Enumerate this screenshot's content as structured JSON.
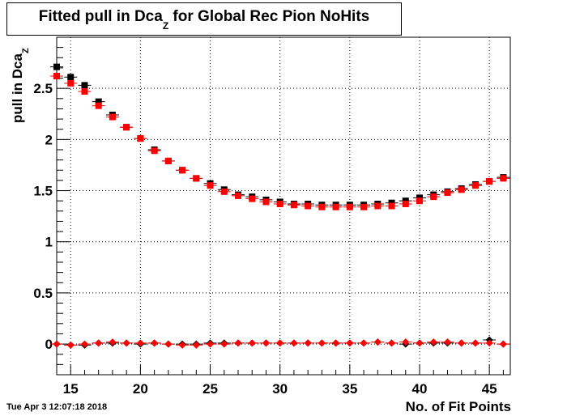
{
  "chart_data": {
    "type": "scatter",
    "title": "Fitted pull in Dca",
    "title_sub": "Z",
    "title_rest": " for Global Rec Pion NoHits",
    "xlabel": "No. of Fit Points",
    "ylabel": "pull in Dca",
    "ylabel_sub": "Z",
    "xlim": [
      14,
      46.5
    ],
    "ylim": [
      -0.3,
      3.0
    ],
    "xticks": [
      15,
      20,
      25,
      30,
      35,
      40,
      45
    ],
    "yticks": [
      0,
      0.5,
      1,
      1.5,
      2,
      2.5
    ],
    "ytick_labels": [
      "0",
      "0.5",
      "1",
      "1.5",
      "2",
      "2.5"
    ],
    "grid": true,
    "x": [
      14,
      15,
      16,
      17,
      18,
      19,
      20,
      21,
      22,
      23,
      24,
      25,
      26,
      27,
      28,
      29,
      30,
      31,
      32,
      33,
      34,
      35,
      36,
      37,
      38,
      39,
      40,
      41,
      42,
      43,
      44,
      45,
      46
    ],
    "series": [
      {
        "color": "#000000",
        "marker": "square",
        "values": [
          2.71,
          2.61,
          2.53,
          2.37,
          2.24,
          2.12,
          2.01,
          1.9,
          1.79,
          1.7,
          1.62,
          1.57,
          1.51,
          1.46,
          1.44,
          1.41,
          1.39,
          1.37,
          1.37,
          1.36,
          1.36,
          1.36,
          1.36,
          1.37,
          1.38,
          1.4,
          1.43,
          1.46,
          1.49,
          1.52,
          1.56,
          1.59,
          1.63
        ]
      },
      {
        "color": "#ff0000",
        "marker": "square",
        "values": [
          2.62,
          2.55,
          2.47,
          2.33,
          2.22,
          2.12,
          2.01,
          1.89,
          1.79,
          1.7,
          1.62,
          1.55,
          1.49,
          1.45,
          1.42,
          1.39,
          1.37,
          1.36,
          1.35,
          1.34,
          1.34,
          1.34,
          1.34,
          1.35,
          1.35,
          1.37,
          1.4,
          1.44,
          1.48,
          1.51,
          1.55,
          1.59,
          1.62
        ]
      },
      {
        "color": "#000000",
        "marker": "diamond",
        "values": [
          0.0,
          -0.01,
          -0.01,
          0.01,
          0.01,
          0.01,
          0.0,
          0.01,
          0.0,
          0.0,
          0.0,
          0.01,
          0.01,
          0.01,
          0.01,
          0.01,
          0.01,
          0.01,
          0.01,
          0.01,
          0.01,
          0.01,
          0.01,
          0.02,
          0.01,
          0.0,
          0.01,
          0.01,
          0.01,
          0.01,
          0.01,
          0.04,
          0.0
        ]
      },
      {
        "color": "#ff0000",
        "marker": "diamond",
        "values": [
          0.0,
          -0.01,
          0.0,
          0.01,
          0.02,
          0.01,
          0.01,
          0.01,
          0.0,
          -0.01,
          -0.01,
          0.0,
          0.0,
          0.01,
          0.01,
          0.01,
          0.01,
          0.01,
          0.01,
          0.01,
          0.01,
          0.01,
          0.01,
          0.02,
          0.01,
          0.02,
          0.01,
          0.02,
          0.02,
          0.01,
          0.01,
          0.01,
          0.0
        ]
      }
    ]
  },
  "timestamp": "Tue Apr  3 12:07:18 2018"
}
